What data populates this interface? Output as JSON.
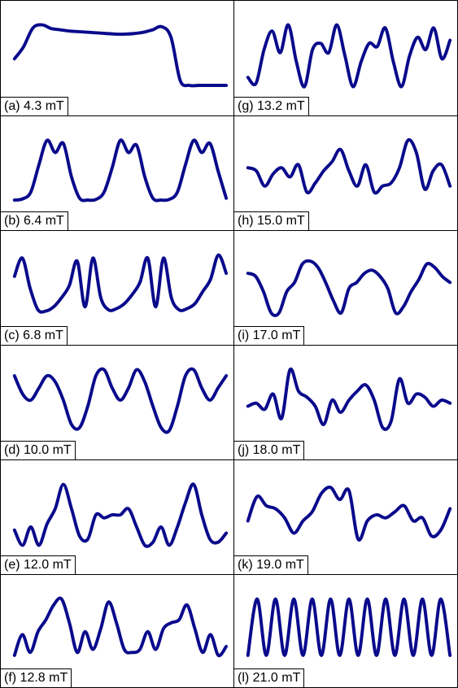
{
  "colors": {
    "trace": "#0a0a8c",
    "border": "#000000",
    "background": "#ffffff"
  },
  "panels": [
    {
      "id": "a",
      "label": "(a) 4.3 mT",
      "shape": [
        0.55,
        0.35,
        0.05,
        0.0,
        0.06,
        0.08,
        0.1,
        0.11,
        0.12,
        0.13,
        0.14,
        0.15,
        0.15,
        0.14,
        0.12,
        0.08,
        0.03,
        0.2,
        0.9,
        0.98,
        0.98,
        0.98,
        0.98,
        0.98
      ]
    },
    {
      "id": "b",
      "label": "(b) 6.4 mT",
      "shape": [
        0.98,
        0.96,
        0.85,
        0.4,
        0.0,
        0.2,
        0.05,
        0.6,
        0.95,
        0.98,
        0.97,
        0.85,
        0.45,
        0.0,
        0.2,
        0.08,
        0.6,
        0.95,
        0.98,
        0.97,
        0.85,
        0.4,
        0.0,
        0.2,
        0.05,
        0.5,
        0.95
      ]
    },
    {
      "id": "c",
      "label": "(c) 6.8 mT",
      "shape": [
        0.35,
        0.05,
        0.55,
        0.9,
        0.92,
        0.85,
        0.7,
        0.5,
        0.1,
        0.85,
        0.05,
        0.7,
        0.9,
        0.88,
        0.8,
        0.65,
        0.45,
        0.05,
        0.85,
        0.05,
        0.7,
        0.9,
        0.88,
        0.8,
        0.6,
        0.4,
        0.0,
        0.3
      ]
    },
    {
      "id": "d",
      "label": "(d) 10.0 mT",
      "shape": [
        0.1,
        0.4,
        0.5,
        0.3,
        0.1,
        0.2,
        0.5,
        0.9,
        0.95,
        0.6,
        0.1,
        0.0,
        0.3,
        0.5,
        0.3,
        0.0,
        0.2,
        0.6,
        0.95,
        1.0,
        0.6,
        0.1,
        0.0,
        0.3,
        0.5,
        0.3,
        0.1
      ]
    },
    {
      "id": "e",
      "label": "(e) 12.0 mT",
      "shape": [
        0.75,
        1.0,
        0.7,
        1.0,
        0.65,
        0.4,
        0.0,
        0.4,
        0.85,
        0.9,
        0.5,
        0.55,
        0.5,
        0.5,
        0.4,
        0.7,
        1.0,
        0.95,
        0.7,
        1.0,
        0.7,
        0.3,
        0.0,
        0.5,
        0.9,
        0.95,
        0.8
      ]
    },
    {
      "id": "f",
      "label": "(f) 12.8 mT",
      "shape": [
        0.95,
        0.6,
        0.9,
        0.55,
        0.35,
        0.1,
        0.0,
        0.4,
        0.9,
        0.55,
        0.85,
        0.5,
        0.05,
        0.4,
        0.85,
        0.9,
        0.85,
        0.55,
        0.85,
        0.5,
        0.4,
        0.35,
        0.1,
        0.5,
        0.9,
        0.6,
        0.95,
        0.8
      ]
    },
    {
      "id": "g",
      "label": "(g) 13.2 mT",
      "shape": [
        0.85,
        0.95,
        0.4,
        0.1,
        0.45,
        0.0,
        0.6,
        1.0,
        0.4,
        0.3,
        0.45,
        0.0,
        0.5,
        1.0,
        0.6,
        0.3,
        0.35,
        0.05,
        0.6,
        1.0,
        0.5,
        0.2,
        0.4,
        0.05,
        0.55,
        0.25
      ]
    },
    {
      "id": "h",
      "label": "(h) 15.0 mT",
      "shape": [
        0.45,
        0.5,
        0.75,
        0.55,
        0.45,
        0.6,
        0.4,
        0.85,
        0.7,
        0.5,
        0.35,
        0.15,
        0.5,
        0.75,
        0.4,
        0.85,
        0.75,
        0.7,
        0.45,
        0.0,
        0.2,
        0.8,
        0.5,
        0.4,
        0.75
      ]
    },
    {
      "id": "i",
      "label": "(i) 17.0 mT",
      "shape": [
        0.3,
        0.35,
        0.6,
        0.95,
        0.95,
        0.6,
        0.45,
        0.15,
        0.1,
        0.2,
        0.45,
        0.75,
        0.95,
        0.55,
        0.45,
        0.3,
        0.25,
        0.35,
        0.55,
        0.95,
        0.85,
        0.6,
        0.4,
        0.15,
        0.2,
        0.35,
        0.45
      ]
    },
    {
      "id": "j",
      "label": "(j) 18.0 mT",
      "shape": [
        0.6,
        0.55,
        0.65,
        0.4,
        0.8,
        0.0,
        0.35,
        0.45,
        0.6,
        0.9,
        0.5,
        0.7,
        0.5,
        0.35,
        0.25,
        0.5,
        0.95,
        0.85,
        0.15,
        0.55,
        0.4,
        0.45,
        0.6,
        0.5,
        0.55
      ]
    },
    {
      "id": "k",
      "label": "(k) 19.0 mT",
      "shape": [
        0.6,
        0.2,
        0.35,
        0.4,
        0.55,
        0.8,
        0.6,
        0.45,
        0.15,
        0.05,
        0.25,
        0.1,
        0.9,
        0.6,
        0.5,
        0.55,
        0.45,
        0.35,
        0.6,
        0.55,
        0.85,
        0.75,
        0.4
      ]
    },
    {
      "id": "l",
      "label": "(l) 21.0 mT",
      "shape": [
        0.95,
        0.0,
        0.95,
        0.0,
        0.95,
        0.0,
        0.95,
        0.0,
        0.95,
        0.0,
        0.95,
        0.0,
        0.95,
        0.0,
        0.95,
        0.0,
        0.95,
        0.0,
        0.95,
        0.0,
        0.95,
        0.0,
        0.95
      ]
    }
  ]
}
